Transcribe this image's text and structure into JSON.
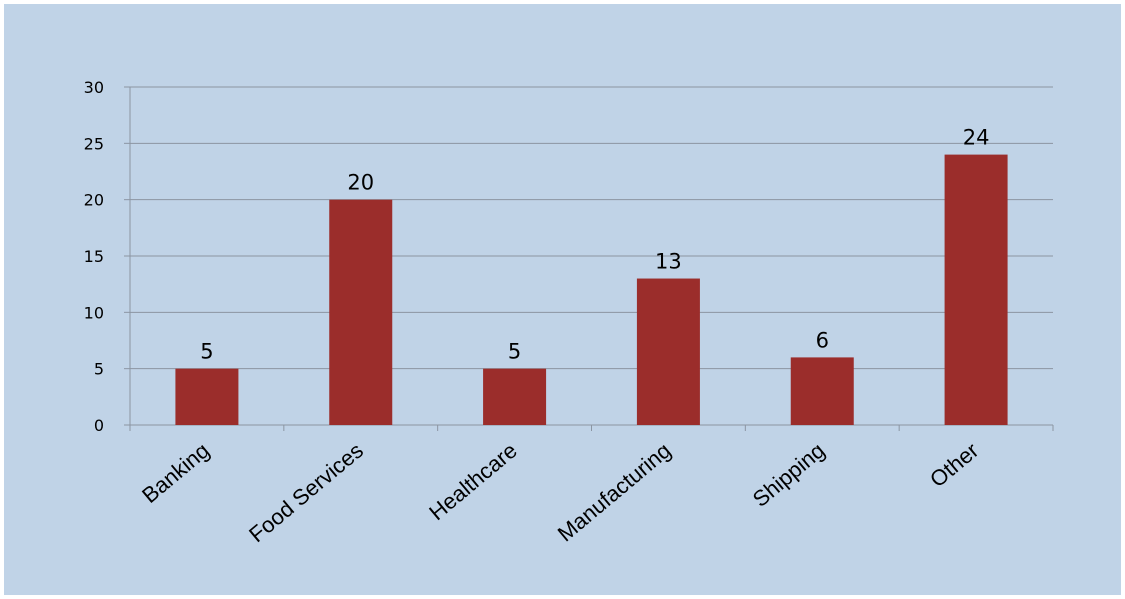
{
  "chart_data": {
    "type": "bar",
    "title": "",
    "xlabel": "",
    "ylabel": "",
    "categories": [
      "Banking",
      "Food Services",
      "Healthcare",
      "Manufacturing",
      "Shipping",
      "Other"
    ],
    "values": [
      5,
      20,
      5,
      13,
      6,
      24
    ],
    "data_labels": [
      "5",
      "20",
      "5",
      "13",
      "6",
      "24"
    ],
    "ylim": [
      0,
      30
    ],
    "yticks": [
      0,
      5,
      10,
      15,
      20,
      25,
      30
    ],
    "ytick_labels": [
      "0",
      "5",
      "10",
      "15",
      "20",
      "25",
      "30"
    ],
    "grid": true,
    "legend": "none",
    "colors": {
      "bar": "#9b2d2b",
      "background": "#c0d3e7",
      "gridline": "#8b95a2",
      "axis": "#8b95a2"
    }
  }
}
